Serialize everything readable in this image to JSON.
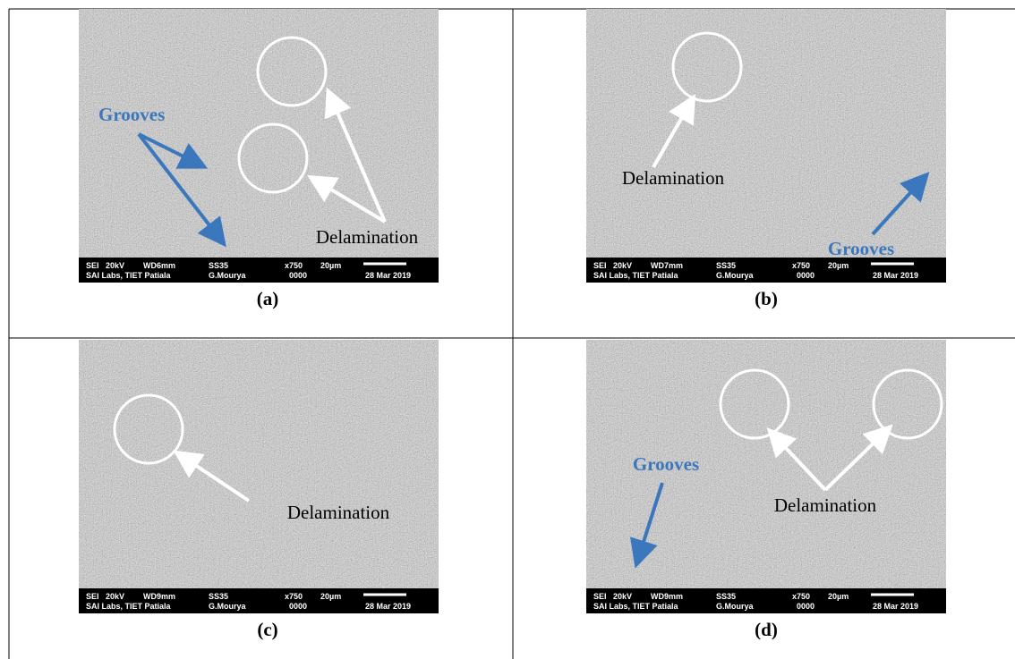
{
  "panels": [
    {
      "caption": "(a)",
      "annotations": [
        "Grooves",
        "Delamination"
      ],
      "info": {
        "row1": [
          "SEI",
          "20kV",
          "WD6mm",
          "SS35",
          "x750",
          "20µm"
        ],
        "row2": [
          "SAI Labs, TIET Patiala",
          "G.Mourya",
          "0000",
          "28 Mar 2019"
        ]
      }
    },
    {
      "caption": "(b)",
      "annotations": [
        "Delamination",
        "Grooves"
      ],
      "info": {
        "row1": [
          "SEI",
          "20kV",
          "WD7mm",
          "SS35",
          "x750",
          "20µm"
        ],
        "row2": [
          "SAI Labs, TIET Patiala",
          "G.Mourya",
          "0000",
          "28 Mar 2019"
        ]
      }
    },
    {
      "caption": "(c)",
      "annotations": [
        "Delamination"
      ],
      "info": {
        "row1": [
          "SEI",
          "20kV",
          "WD9mm",
          "SS35",
          "x750",
          "20µm"
        ],
        "row2": [
          "SAI Labs, TIET Patiala",
          "G.Mourya",
          "0000",
          "28 Mar 2019"
        ]
      }
    },
    {
      "caption": "(d)",
      "annotations": [
        "Grooves",
        "Delamination"
      ],
      "info": {
        "row1": [
          "SEI",
          "20kV",
          "WD9mm",
          "SS35",
          "x750",
          "20µm"
        ],
        "row2": [
          "SAI Labs, TIET Patiala",
          "G.Mourya",
          "0000",
          "28 Mar 2019"
        ]
      }
    }
  ]
}
